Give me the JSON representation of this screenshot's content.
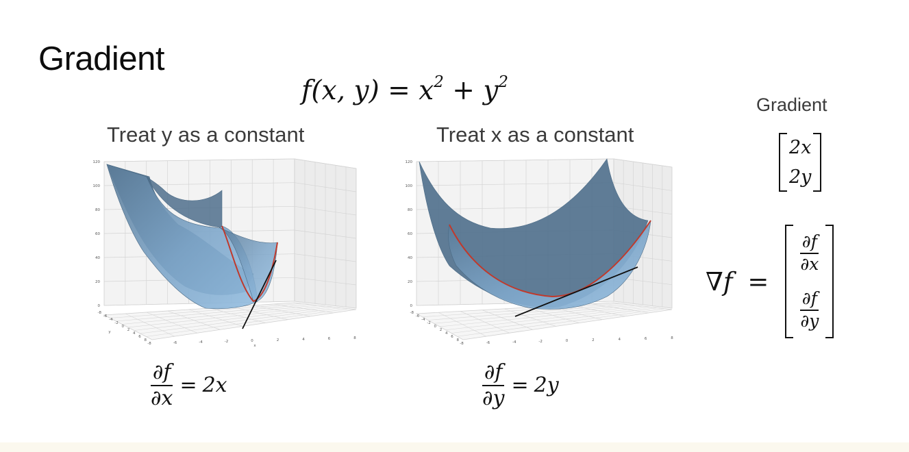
{
  "slide": {
    "title": "Gradient",
    "function": {
      "lhs": "f(x, y)",
      "eq": "=",
      "t1": "x",
      "t1_exp": "2",
      "plus": "+",
      "t2": "y",
      "t2_exp": "2"
    },
    "left_panel": {
      "caption": "Treat y as a constant",
      "derivative": {
        "num": "∂f",
        "den": "∂x",
        "eq": "=",
        "rhs": "2x"
      }
    },
    "right_panel": {
      "caption": "Treat x as a constant",
      "derivative": {
        "num": "∂f",
        "den": "∂y",
        "eq": "=",
        "rhs": "2y"
      }
    },
    "gradient_box": {
      "label": "Gradient",
      "vector": [
        "2x",
        "2y"
      ]
    },
    "gradient_definition": {
      "nabla": "∇",
      "f": "f",
      "eq": "=",
      "components": [
        {
          "num": "∂f",
          "den": "∂x"
        },
        {
          "num": "∂f",
          "den": "∂y"
        }
      ]
    }
  },
  "chart_data": [
    {
      "type": "surface3d",
      "surface": "x^2 + y^2",
      "z_ticks": [
        "0",
        "20",
        "40",
        "60",
        "80",
        "100",
        "120"
      ],
      "x_ticks": [
        "-8",
        "-6",
        "-4",
        "-2",
        "0",
        "2",
        "4",
        "6",
        "8"
      ],
      "y_ticks": [
        "-8",
        "-6",
        "-4",
        "-2",
        "0",
        "2",
        "4",
        "6",
        "8"
      ],
      "xlabel": "x",
      "ylabel": "y",
      "slice_curve": "red",
      "tangent_line": "black",
      "colors": {
        "surface": "#7fa8cc",
        "surface_dark": "#4f6f8c",
        "curve": "#c0392b",
        "tangent": "#111111",
        "grid": "#d4d4d4"
      }
    },
    {
      "type": "surface3d",
      "surface": "x^2 + y^2",
      "z_ticks": [
        "0",
        "20",
        "40",
        "60",
        "80",
        "100",
        "120"
      ],
      "x_ticks": [
        "-8",
        "-6",
        "-4",
        "-2",
        "0",
        "2",
        "4",
        "6",
        "8"
      ],
      "y_ticks": [
        "-8",
        "-6",
        "-4",
        "-2",
        "0",
        "2",
        "4",
        "6",
        "8"
      ],
      "slice_curve": "red",
      "tangent_line": "black",
      "colors": {
        "surface": "#7fa8cc",
        "surface_dark": "#4f6f8c",
        "curve": "#c0392b",
        "tangent": "#111111",
        "grid": "#d4d4d4"
      }
    }
  ]
}
